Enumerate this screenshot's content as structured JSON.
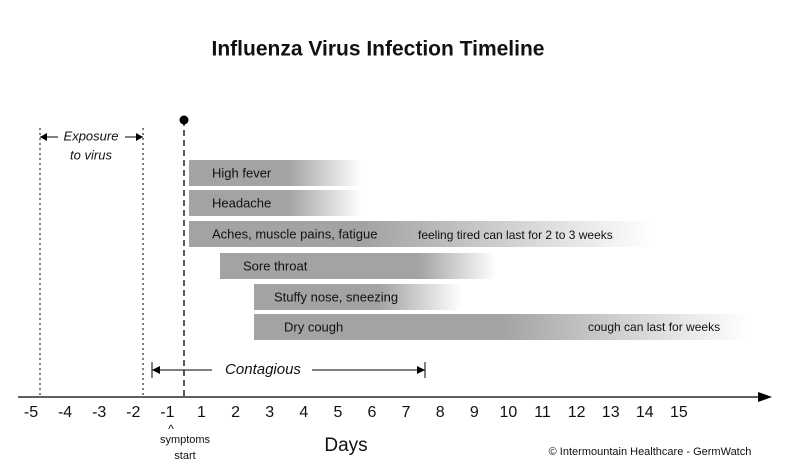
{
  "title": "Influenza Virus Infection Timeline",
  "exposure": {
    "line1": "Exposure",
    "line2": "to virus"
  },
  "symptoms": [
    {
      "label": "High fever"
    },
    {
      "label": "Headache"
    },
    {
      "label": "Aches, muscle pains, fatigue",
      "note": "feeling tired can last for 2 to 3 weeks"
    },
    {
      "label": "Sore throat"
    },
    {
      "label": "Stuffy nose, sneezing"
    },
    {
      "label": "Dry cough",
      "note": "cough can last for weeks"
    }
  ],
  "contagious": "Contagious",
  "axis": {
    "ticks": [
      "-5",
      "-4",
      "-3",
      "-2",
      "-1",
      "1",
      "2",
      "3",
      "4",
      "5",
      "6",
      "7",
      "8",
      "9",
      "10",
      "11",
      "12",
      "13",
      "14",
      "15"
    ],
    "title": "Days",
    "marker": "^",
    "marker_line1": "symptoms",
    "marker_line2": "start"
  },
  "credit": "© Intermountain Healthcare - GermWatch"
}
